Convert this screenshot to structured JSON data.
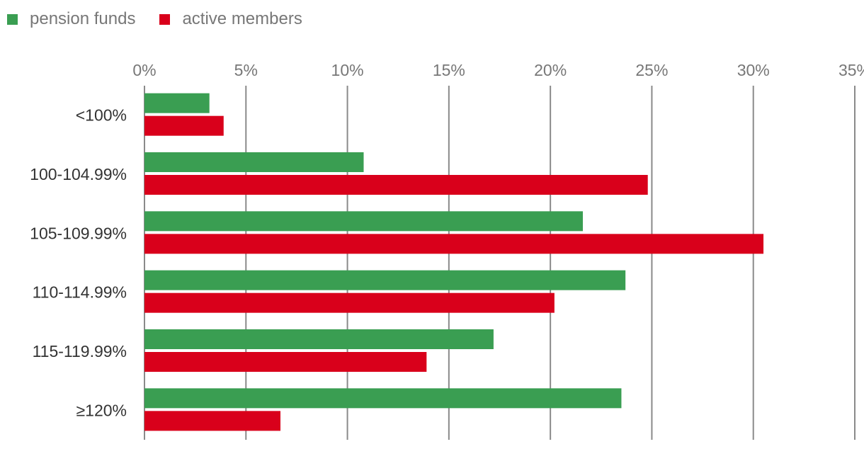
{
  "chart_data": {
    "type": "bar",
    "orientation": "horizontal",
    "categories": [
      "<100%",
      "100-104.99%",
      "105-109.99%",
      "110-114.99%",
      "115-119.99%",
      "≥120%"
    ],
    "series": [
      {
        "name": "pension funds",
        "color": "#3a9e52",
        "values": [
          3.2,
          10.8,
          21.6,
          23.7,
          17.2,
          23.5
        ]
      },
      {
        "name": "active members",
        "color": "#d9001b",
        "values": [
          3.9,
          24.8,
          30.5,
          20.2,
          13.9,
          6.7
        ]
      }
    ],
    "xlim": [
      0,
      35
    ],
    "xticks": [
      0,
      5,
      10,
      15,
      20,
      25,
      30,
      35
    ],
    "tick_suffix": "%",
    "grid": true,
    "legend_position": "top-left",
    "title": "",
    "xlabel": "",
    "ylabel": ""
  }
}
